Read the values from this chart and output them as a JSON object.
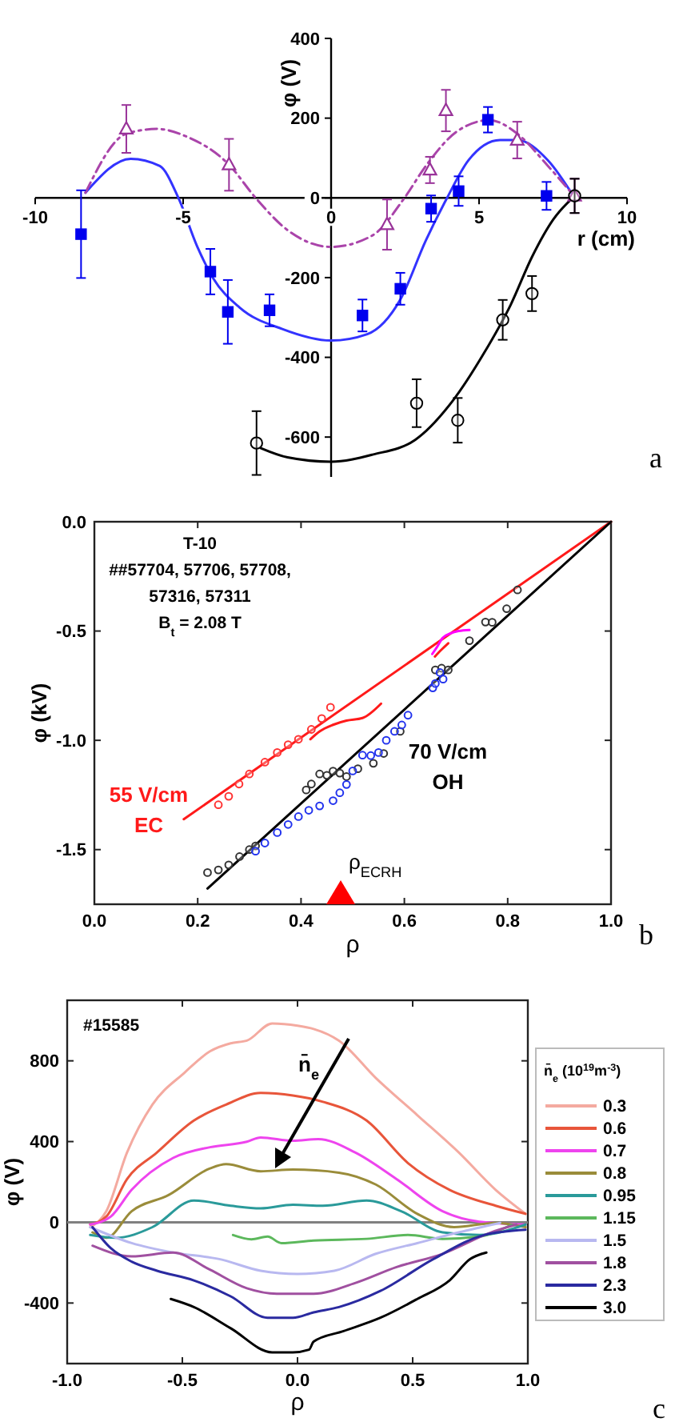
{
  "chart_data": [
    {
      "type": "scatter",
      "xlabel": "r (cm)",
      "ylabel": "φ (V)",
      "xlim": [
        -10,
        10
      ],
      "ylim": [
        -700,
        400
      ],
      "xticks": [
        -10,
        -5,
        0,
        5,
        10
      ],
      "yticks": [
        -600,
        -400,
        -200,
        0,
        200,
        400
      ],
      "annotations": [
        "a"
      ],
      "series": [
        {
          "type": "line",
          "color": "#3333ff",
          "x": [
            -8.3,
            -6.77,
            -5.79,
            -5.16,
            -4.53,
            -3.99,
            -3.09,
            -1.65,
            0,
            1.22,
            2.34,
            3.2,
            3.92,
            4.64,
            5.71,
            6.29,
            7.33,
            8.23
          ],
          "values": [
            13,
            98,
            80,
            0,
            -121,
            -201,
            -275,
            -329,
            -358,
            -342,
            -255,
            -107,
            0,
            94,
            145,
            145,
            94,
            0
          ]
        },
        {
          "type": "line",
          "color": "#aa44aa",
          "line_style": "dashdot",
          "x": [
            -8.3,
            -6.92,
            -5.88,
            -4.89,
            -3.45,
            -2.55,
            -1.47,
            0,
            1.4,
            2.48,
            3.2,
            4.28,
            5.36,
            6.29,
            7.33,
            8.23
          ],
          "values": [
            13,
            161,
            173,
            154,
            83,
            0,
            -81,
            -123,
            -94,
            0,
            80,
            168,
            195,
            161,
            80,
            3
          ]
        },
        {
          "type": "line",
          "color": "#000000",
          "x": [
            -2.37,
            -1.47,
            0,
            1.4,
            2.84,
            4.1,
            5.17,
            6.07,
            6.79,
            7.51,
            8.23
          ],
          "values": [
            -628,
            -651,
            -662,
            -644,
            -607,
            -510,
            -389,
            -268,
            -148,
            -54,
            5
          ]
        },
        {
          "type": "scatter",
          "color": "#0000ee",
          "marker": "square",
          "x": [
            -8.45,
            -4.08,
            -3.49,
            -2.08,
            1.06,
            2.34,
            3.38,
            4.31,
            5.3,
            7.28
          ],
          "values": [
            -91,
            -185,
            -286,
            -282,
            -295,
            -228,
            -27,
            17,
            196,
            5
          ],
          "errors": [
            110,
            57,
            80,
            40,
            40,
            40,
            33,
            37,
            32,
            35
          ]
        },
        {
          "type": "scatter",
          "color": "#993399",
          "marker": "triangle",
          "x": [
            -6.92,
            -3.45,
            1.89,
            3.34,
            3.88,
            6.29,
            8.23
          ],
          "values": [
            173,
            83,
            -67,
            70,
            219,
            145,
            5
          ],
          "errors": [
            60,
            65,
            63,
            33,
            52,
            46,
            43
          ]
        },
        {
          "type": "scatter",
          "color": "#000000",
          "marker": "circle",
          "x": [
            -2.52,
            2.89,
            4.28,
            5.8,
            6.79,
            8.23
          ],
          "values": [
            -615,
            -515,
            -558,
            -306,
            -240,
            5
          ],
          "errors": [
            80,
            60,
            56,
            50,
            44,
            43
          ]
        }
      ]
    },
    {
      "type": "line",
      "xlabel": "ρ",
      "ylabel": "φ (kV)",
      "xlim": [
        0,
        1
      ],
      "ylim": [
        -1.75,
        0
      ],
      "xticks": [
        {
          "value": 0,
          "label": "0.0"
        },
        0.2,
        0.4,
        0.6,
        0.8,
        {
          "value": 1,
          "label": "1.0"
        }
      ],
      "yticks": [
        {
          "value": 0,
          "label": "0.0"
        },
        -0.5,
        {
          "value": -1,
          "label": "-1.0"
        },
        -1.5
      ],
      "annotations": [
        "T-10",
        "##57704, 57706, 57708,",
        "57316, 57311",
        "B$_{t}$ = 2.08 T",
        "55 V/cm",
        "EC",
        "70 V/cm",
        "OH",
        "ρ$_{ECRH}$",
        "b"
      ],
      "series": [
        {
          "type": "line",
          "color": "#ff1a1a",
          "x": [
            0.173,
            1
          ],
          "values": [
            -1.361,
            0
          ]
        },
        {
          "type": "line",
          "color": "#000000",
          "x": [
            0.219,
            1
          ],
          "values": [
            -1.678,
            0
          ]
        },
        {
          "type": "scatter",
          "color": "#ff3333",
          "marker": "circle",
          "x": [
            0.24,
            0.26,
            0.28,
            0.3,
            0.33,
            0.354,
            0.375,
            0.395,
            0.42,
            0.44,
            0.457
          ],
          "values": [
            -1.295,
            -1.256,
            -1.2,
            -1.154,
            -1.1,
            -1.056,
            -1.02,
            -0.995,
            -0.95,
            -0.9,
            -0.849
          ]
        },
        {
          "type": "line",
          "color": "#ff1a1a",
          "x": [
            0.418,
            0.436,
            0.462,
            0.488,
            0.519,
            0.555
          ],
          "values": [
            -0.995,
            -0.959,
            -0.929,
            -0.91,
            -0.898,
            -0.832
          ]
        },
        {
          "type": "line",
          "color": "#ff00ff",
          "x": [
            0.654,
            0.664,
            0.674,
            0.69,
            0.705,
            0.726
          ],
          "values": [
            -0.605,
            -0.57,
            -0.532,
            -0.51,
            -0.5,
            -0.495
          ]
        },
        {
          "type": "line",
          "color": "#ff1a1a",
          "x": [
            0.659,
            0.672,
            0.685
          ],
          "values": [
            -0.617,
            -0.585,
            -0.556
          ]
        },
        {
          "type": "scatter",
          "color": "#333333",
          "marker": "circle",
          "x": [
            0.219,
            0.24,
            0.26,
            0.281,
            0.3,
            0.312,
            0.41,
            0.42,
            0.436,
            0.45,
            0.462,
            0.475,
            0.488,
            0.51,
            0.54,
            0.56,
            0.592,
            0.66,
            0.672,
            0.685,
            0.726,
            0.757,
            0.77,
            0.798,
            0.819
          ],
          "values": [
            -1.605,
            -1.593,
            -1.57,
            -1.532,
            -1.5,
            -1.483,
            -1.227,
            -1.2,
            -1.154,
            -1.16,
            -1.141,
            -1.15,
            -1.166,
            -1.13,
            -1.105,
            -1.06,
            -0.959,
            -0.678,
            -0.67,
            -0.678,
            -0.544,
            -0.459,
            -0.46,
            -0.398,
            -0.312
          ]
        },
        {
          "type": "scatter",
          "color": "#2233ee",
          "marker": "circle",
          "x": [
            0.312,
            0.33,
            0.354,
            0.375,
            0.395,
            0.415,
            0.436,
            0.462,
            0.475,
            0.488,
            0.5,
            0.519,
            0.535,
            0.55,
            0.565,
            0.581,
            0.595,
            0.607,
            0.655,
            0.66,
            0.669,
            0.675
          ],
          "values": [
            -1.507,
            -1.47,
            -1.422,
            -1.385,
            -1.349,
            -1.32,
            -1.3,
            -1.276,
            -1.24,
            -1.202,
            -1.14,
            -1.068,
            -1.07,
            -1.056,
            -1.0,
            -0.959,
            -0.93,
            -0.885,
            -0.76,
            -0.74,
            -0.69,
            -0.72
          ]
        }
      ]
    },
    {
      "type": "line",
      "xlabel": "ρ",
      "ylabel": "φ (V)",
      "xlim": [
        -1,
        1
      ],
      "ylim": [
        -700,
        1100
      ],
      "xticks": [
        {
          "value": -1,
          "label": "-1.0"
        },
        -0.5,
        {
          "value": 0,
          "label": "0.0"
        },
        0.5,
        {
          "value": 1,
          "label": "1.0"
        }
      ],
      "yticks": [
        -400,
        0,
        400,
        800
      ],
      "legend": "right",
      "legend_title": "n̄$_{e}$ (10$^{19}$m$^{-3}$)",
      "ref_lines": [
        {
          "axis": "y",
          "value": 0,
          "color": "#808080"
        }
      ],
      "annotations": [
        "#15585",
        "n̄$_{e}$",
        "c"
      ],
      "series": [
        {
          "name": "0.3",
          "color": "#f4aaa0",
          "x": [
            -0.9,
            -0.83,
            -0.74,
            -0.63,
            -0.49,
            -0.38,
            -0.29,
            -0.22,
            -0.11,
            0,
            0.07,
            0.18,
            0.34,
            0.52,
            0.7,
            0.86,
            0.99
          ],
          "values": [
            -24,
            55,
            346,
            583,
            742,
            847,
            887,
            900,
            985,
            974,
            958,
            900,
            715,
            531,
            346,
            161,
            42
          ]
        },
        {
          "name": "0.6",
          "color": "#e8553a",
          "x": [
            -0.9,
            -0.83,
            -0.74,
            -0.61,
            -0.45,
            -0.31,
            -0.16,
            -0.02,
            0.11,
            0.3,
            0.48,
            0.66,
            0.86,
            0.99
          ],
          "values": [
            -11,
            29,
            214,
            346,
            504,
            583,
            641,
            628,
            597,
            504,
            293,
            161,
            82,
            42
          ]
        },
        {
          "name": "0.7",
          "color": "#ee44ee",
          "x": [
            -0.9,
            -0.81,
            -0.72,
            -0.54,
            -0.38,
            -0.22,
            -0.16,
            -0.02,
            0.09,
            0.25,
            0.43,
            0.63,
            0.79,
            0.99
          ],
          "values": [
            -11,
            29,
            161,
            319,
            372,
            399,
            420,
            404,
            412,
            346,
            214,
            55,
            3,
            -11
          ]
        },
        {
          "name": "0.8",
          "color": "#9a8c3a",
          "x": [
            -0.89,
            -0.83,
            -0.72,
            -0.56,
            -0.38,
            -0.31,
            -0.16,
            -0.02,
            0.18,
            0.34,
            0.52,
            0.68,
            0.86,
            0.99
          ],
          "values": [
            -50,
            -77,
            55,
            135,
            267,
            288,
            253,
            261,
            246,
            187,
            42,
            -24,
            -3,
            -24
          ]
        },
        {
          "name": "0.95",
          "color": "#2a9a9a",
          "x": [
            -0.9,
            -0.79,
            -0.63,
            -0.45,
            -0.29,
            -0.16,
            -0.02,
            0.11,
            0.3,
            0.45,
            0.63,
            0.79,
            0.99
          ],
          "values": [
            -63,
            -77,
            -24,
            108,
            82,
            69,
            87,
            82,
            108,
            55,
            -50,
            -63,
            -11
          ]
        },
        {
          "name": "1.15",
          "color": "#5cb85c",
          "x": [
            -0.28,
            -0.2,
            -0.13,
            -0.07,
            0.07,
            0.3,
            0.48,
            0.63,
            0.79,
            0.93
          ],
          "values": [
            -63,
            -84,
            -71,
            -103,
            -90,
            -82,
            -63,
            -82,
            -71,
            -11
          ]
        },
        {
          "name": "1.5",
          "color": "#b8b8f0",
          "x": [
            -0.9,
            -0.72,
            -0.54,
            -0.34,
            -0.16,
            0,
            0.16,
            0.34,
            0.52,
            0.7,
            0.88
          ],
          "values": [
            -24,
            -103,
            -150,
            -182,
            -240,
            -256,
            -240,
            -156,
            -103,
            -50,
            -3
          ]
        },
        {
          "name": "1.8",
          "color": "#a050a0",
          "x": [
            -0.89,
            -0.72,
            -0.54,
            -0.38,
            -0.22,
            -0.09,
            0.07,
            0.25,
            0.43,
            0.63,
            0.84,
            0.95
          ],
          "values": [
            -116,
            -169,
            -150,
            -235,
            -327,
            -354,
            -354,
            -301,
            -222,
            -156,
            -50,
            -11
          ]
        },
        {
          "name": "2.3",
          "color": "#2a2aa0",
          "x": [
            -0.89,
            -0.81,
            -0.72,
            -0.61,
            -0.45,
            -0.29,
            -0.13,
            -0.02,
            0.07,
            0.18,
            0.36,
            0.59,
            0.81,
            0.99
          ],
          "values": [
            -24,
            -129,
            -195,
            -240,
            -288,
            -367,
            -473,
            -473,
            -446,
            -420,
            -340,
            -182,
            -63,
            -37
          ]
        },
        {
          "name": "3.0",
          "color": "#000000",
          "x": [
            -0.55,
            -0.45,
            -0.29,
            -0.11,
            -0.02,
            0.05,
            0.07,
            0.2,
            0.36,
            0.52,
            0.66,
            0.75,
            0.82
          ],
          "values": [
            -380,
            -420,
            -525,
            -644,
            -644,
            -631,
            -591,
            -539,
            -473,
            -380,
            -288,
            -182,
            -150
          ]
        }
      ]
    }
  ]
}
